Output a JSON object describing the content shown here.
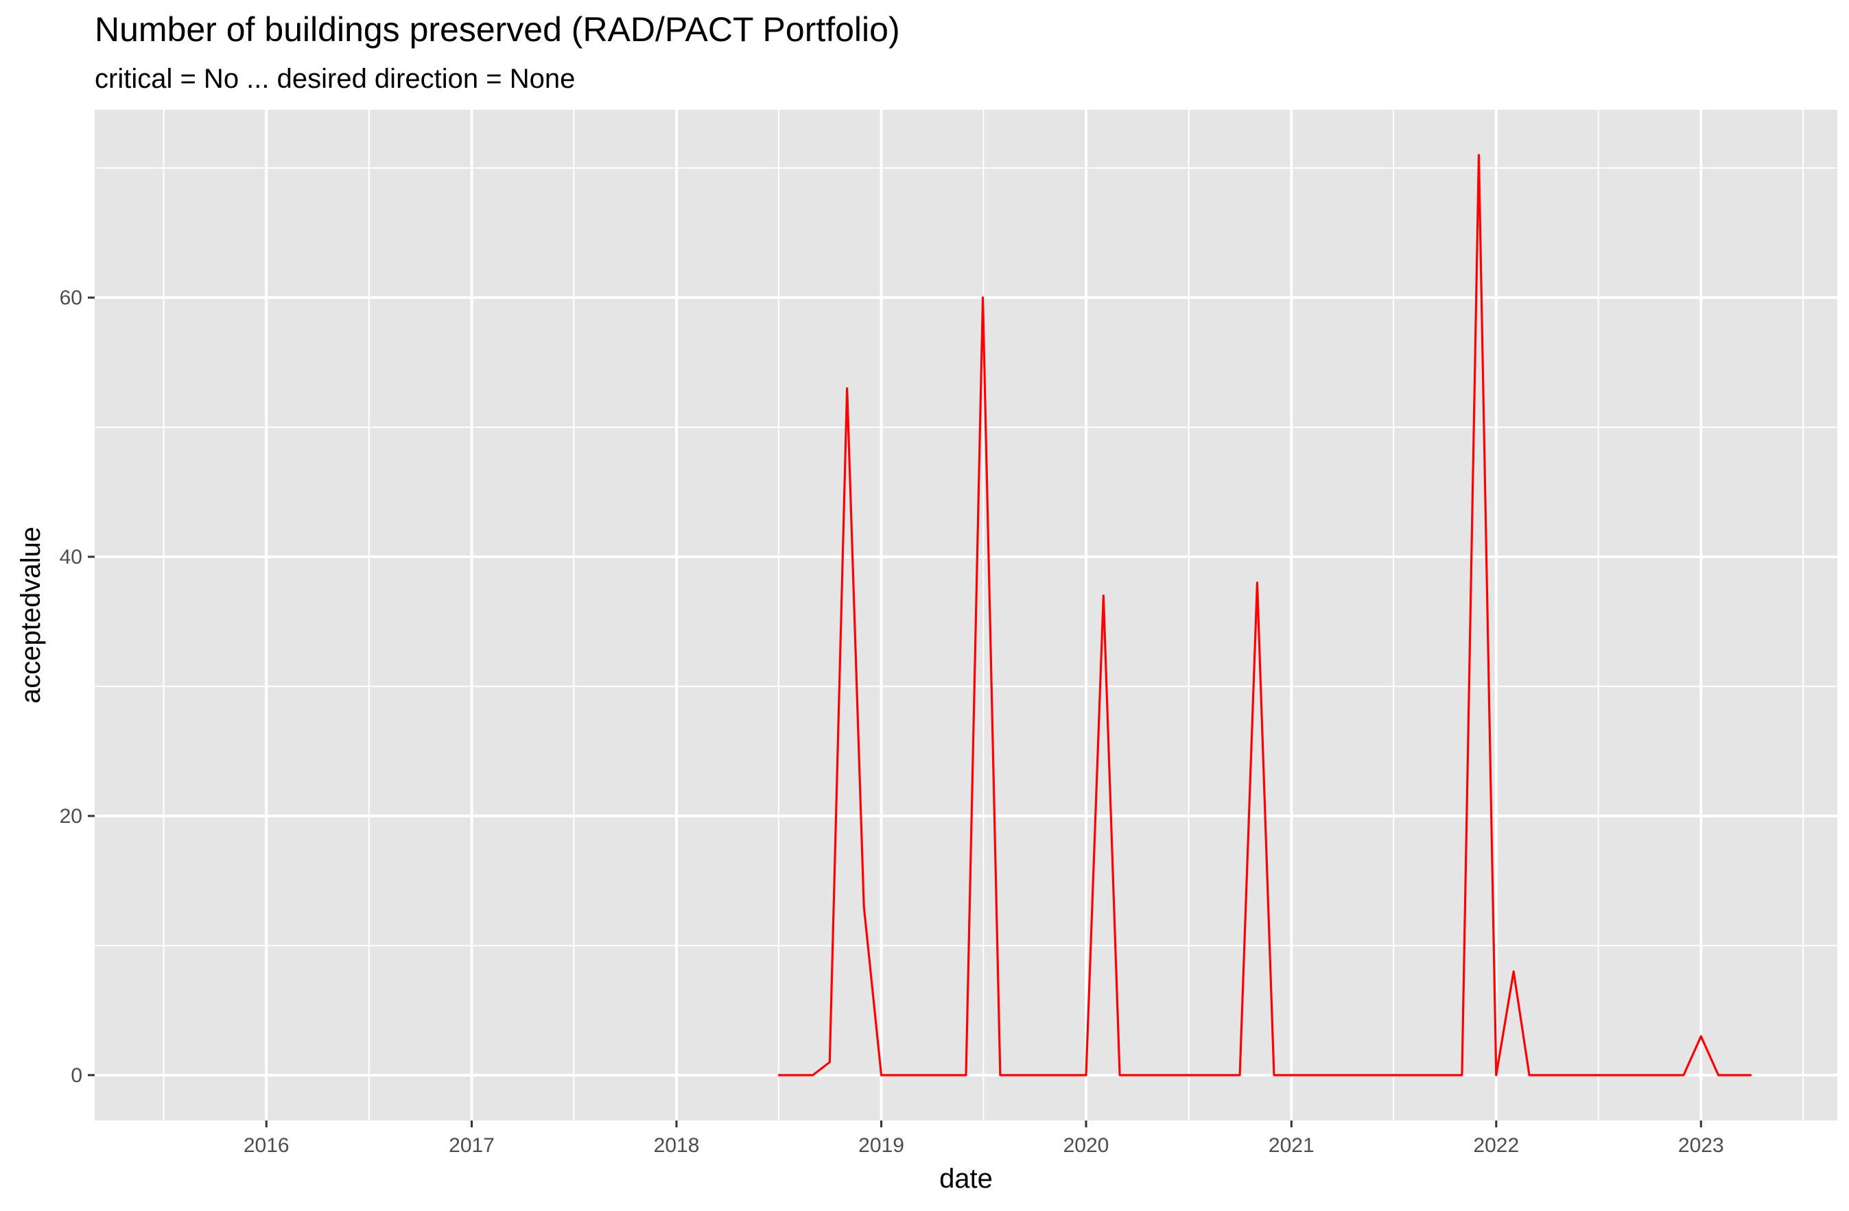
{
  "chart_data": {
    "type": "line",
    "title": "Number of buildings preserved (RAD/PACT Portfolio)",
    "subtitle": "critical = No ... desired direction = None",
    "xlabel": "date",
    "ylabel": "acceptedvalue",
    "x_ticks": [
      "2016",
      "2017",
      "2018",
      "2019",
      "2020",
      "2021",
      "2022",
      "2023"
    ],
    "y_ticks": [
      0,
      20,
      40,
      60
    ],
    "xlim": [
      "2015-03-01",
      "2023-09-01"
    ],
    "ylim": [
      -3.5,
      74.5
    ],
    "grid": true,
    "legend": "none",
    "colors": {
      "panel": "#e5e5e5",
      "grid": "#ffffff",
      "line": "#ff0000",
      "tick_text": "#4d4d4d"
    },
    "series": [
      {
        "x": [
          "2018-07-01",
          "2018-08-01",
          "2018-09-01",
          "2018-10-01",
          "2018-11-01",
          "2018-12-01",
          "2019-01-01",
          "2019-02-01",
          "2019-03-01",
          "2019-04-01",
          "2019-05-01",
          "2019-06-01",
          "2019-07-01",
          "2019-08-01",
          "2019-09-01",
          "2019-10-01",
          "2019-11-01",
          "2019-12-01",
          "2020-01-01",
          "2020-02-01",
          "2020-03-01",
          "2020-04-01",
          "2020-05-01",
          "2020-06-01",
          "2020-07-01",
          "2020-08-01",
          "2020-09-01",
          "2020-10-01",
          "2020-11-01",
          "2020-12-01",
          "2021-01-01",
          "2021-02-01",
          "2021-03-01",
          "2021-04-01",
          "2021-05-01",
          "2021-06-01",
          "2021-07-01",
          "2021-08-01",
          "2021-09-01",
          "2021-10-01",
          "2021-11-01",
          "2021-12-01",
          "2022-01-01",
          "2022-02-01",
          "2022-03-01",
          "2022-04-01",
          "2022-05-01",
          "2022-06-01",
          "2022-07-01",
          "2022-08-01",
          "2022-09-01",
          "2022-10-01",
          "2022-11-01",
          "2022-12-01",
          "2023-01-01",
          "2023-02-01",
          "2023-03-01",
          "2023-04-01"
        ],
        "values": [
          0,
          0,
          0,
          1,
          53,
          13,
          0,
          0,
          0,
          0,
          0,
          0,
          60,
          0,
          0,
          0,
          0,
          0,
          0,
          37,
          0,
          0,
          0,
          0,
          0,
          0,
          0,
          0,
          38,
          0,
          0,
          0,
          0,
          0,
          0,
          0,
          0,
          0,
          0,
          0,
          0,
          71,
          0,
          8,
          0,
          0,
          0,
          0,
          0,
          0,
          0,
          0,
          0,
          0,
          3,
          0,
          0,
          0
        ]
      }
    ]
  }
}
